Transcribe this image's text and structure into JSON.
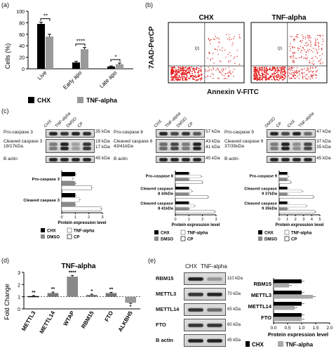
{
  "panels": {
    "a": "(a)",
    "b": "(b)",
    "c": "(c)",
    "d": "(d)",
    "e": "(e)"
  },
  "panel_a": {
    "chart_data": {
      "type": "bar",
      "categories": [
        "Live",
        "Early apo",
        "Late apo"
      ],
      "series": [
        {
          "name": "CHX",
          "values": [
            78,
            11,
            4
          ],
          "errors": [
            3,
            2,
            1
          ],
          "color": "#000000"
        },
        {
          "name": "TNF-alpha",
          "values": [
            56,
            34,
            8
          ],
          "errors": [
            4,
            3,
            2
          ],
          "color": "#9a9a9a"
        }
      ],
      "ylabel": "Cells (%)",
      "ylim": [
        0,
        100
      ],
      "yticks": [
        "0",
        "20",
        "40",
        "60",
        "80",
        "100"
      ],
      "significance": [
        "**",
        "****",
        "*"
      ]
    }
  },
  "panel_b": {
    "yaxis": "7AAD-PerCP",
    "xaxis": "Annexin V-FITC",
    "plots": [
      {
        "title": "CHX",
        "quadrant": "Q1"
      },
      {
        "title": "TNF-alpha",
        "quadrant": "Q1"
      }
    ]
  },
  "panel_c": {
    "blots": [
      {
        "lanes": [
          "CHX",
          "TNF-alpha",
          "DMSO",
          "CP"
        ],
        "rows": [
          {
            "label": "Pro-caspase 3",
            "kda": [
              "35 kDa"
            ]
          },
          {
            "label": "Cleaved caspase 3 19/17kDa",
            "kda": [
              "19 kDa",
              "17 kDa"
            ]
          },
          {
            "label": "B actin",
            "kda": [
              "45 kDa"
            ]
          }
        ],
        "chart": {
          "type": "bar",
          "categories": [
            "Pro-caspase 3",
            "Cleaved caspase 3"
          ],
          "series": [
            {
              "name": "CHX",
              "values": [
                1.0,
                1.0
              ]
            },
            {
              "name": "TNF-alpha",
              "values": [
                0.8,
                1.3
              ]
            },
            {
              "name": "DMSO",
              "values": [
                1.0,
                1.0
              ]
            },
            {
              "name": "CP",
              "values": [
                2.2,
                2.9
              ]
            }
          ],
          "xlabel": "Protein expression level",
          "xticks": [
            "0",
            "1",
            "2",
            "3"
          ],
          "xlim": [
            0,
            3
          ]
        }
      },
      {
        "lanes": [
          "CHX",
          "TNF-alpha",
          "DMSO",
          "CP"
        ],
        "rows": [
          {
            "label": "Pro-caspase 8",
            "kda": [
              "57 kDa"
            ]
          },
          {
            "label": "Cleaved caspase 8 43/41kDa",
            "kda": [
              "43 kDa",
              "41 kDa"
            ]
          },
          {
            "label": "B actin",
            "kda": [
              "45 kDa"
            ]
          }
        ],
        "chart": {
          "type": "bar",
          "categories": [
            "Pro-caspase 8",
            "Cleaved caspase 8 43kDa",
            "Cleaved caspase 8 41kDa"
          ],
          "series": [
            {
              "name": "CHX",
              "values": [
                1.0,
                1.0,
                1.0
              ]
            },
            {
              "name": "TNF-alpha",
              "values": [
                1.9,
                1.2,
                1.4
              ]
            },
            {
              "name": "DMSO",
              "values": [
                1.0,
                1.0,
                1.0
              ]
            },
            {
              "name": "CP",
              "values": [
                2.0,
                2.4,
                2.9
              ]
            }
          ],
          "xlabel": "Protein expression level",
          "xticks": [
            "0",
            "1",
            "2",
            "3"
          ],
          "xlim": [
            0,
            3
          ]
        }
      },
      {
        "lanes": [
          "DMSO",
          "CP",
          "CHX",
          "TNF-alpha"
        ],
        "rows": [
          {
            "label": "Pro-caspase 9",
            "kda": [
              "47 kDa"
            ]
          },
          {
            "label": "Cleaved caspase 9 37/35kDa",
            "kda": [
              "37 kDa",
              "35 kDa"
            ]
          },
          {
            "label": "B actin",
            "kda": [
              "45 kDa"
            ]
          }
        ],
        "chart": {
          "type": "bar",
          "categories": [
            "Pro-caspase 9",
            "Cleaved caspase 9 37kDa",
            "Cleaved caspase 9 35kDa"
          ],
          "series": [
            {
              "name": "CHX",
              "values": [
                1.0,
                1.0,
                1.0
              ]
            },
            {
              "name": "TNF-alpha",
              "values": [
                1.1,
                2.8,
                3.3
              ]
            },
            {
              "name": "DMSO",
              "values": [
                1.0,
                1.0,
                1.0
              ]
            },
            {
              "name": "CP",
              "values": [
                1.4,
                4.2,
                4.4
              ]
            }
          ],
          "xlabel": "Protein expression level",
          "xticks": [
            "0",
            "1",
            "2",
            "3",
            "4",
            "5"
          ],
          "xlim": [
            0,
            5
          ]
        }
      }
    ],
    "legend": [
      "CHX",
      "TNF-alpha",
      "DMSO",
      "CP"
    ]
  },
  "panel_d": {
    "chart_data": {
      "type": "bar",
      "title": "TNF-alpha",
      "categories": [
        "METTL3",
        "METTL14",
        "WTAP",
        "RBM15",
        "FTO",
        "ALKBH5"
      ],
      "values": [
        1.05,
        1.3,
        2.65,
        1.15,
        1.3,
        0.5
      ],
      "errors": [
        0.05,
        0.08,
        0.1,
        0.06,
        0.06,
        0.05
      ],
      "significance": [
        "**",
        "**",
        "****",
        "*",
        "**",
        "*"
      ],
      "ylabel": "Fold Change",
      "ylim": [
        0,
        3
      ],
      "yticks": [
        "0",
        "1",
        "2",
        "3"
      ]
    }
  },
  "panel_e": {
    "lanes": [
      "CHX",
      "TNF-alpha"
    ],
    "rows": [
      {
        "label": "RBM15",
        "kda": "110 kDa"
      },
      {
        "label": "METTL3",
        "kda": "70 kDa"
      },
      {
        "label": "METTL14",
        "kda": "65 kDa"
      },
      {
        "label": "FTO",
        "kda": "60 kDa"
      },
      {
        "label": "B actin",
        "kda": "45 kDa"
      }
    ],
    "chart_data": {
      "type": "bar",
      "categories": [
        "RBM15",
        "METTL3",
        "METTL14",
        "FTO"
      ],
      "series": [
        {
          "name": "CHX",
          "values": [
            1.0,
            1.0,
            1.0,
            1.0
          ]
        },
        {
          "name": "TNF-alpha",
          "values": [
            0.55,
            1.4,
            0.75,
            1.0
          ]
        }
      ],
      "xlabel": "Protein expression level",
      "xticks": [
        "0.0",
        "0.5",
        "1.0",
        "1.5",
        "2.0"
      ],
      "xlim": [
        0,
        2
      ]
    }
  }
}
